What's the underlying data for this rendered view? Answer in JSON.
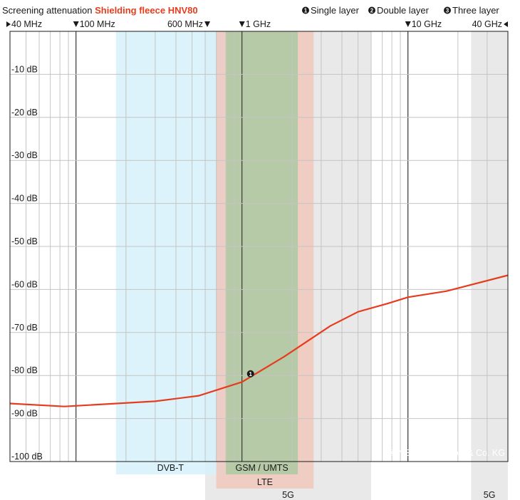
{
  "header": {
    "title": "Screening attenuation",
    "product": "Shielding fleece HNV80",
    "layers": [
      {
        "num": "1",
        "label": "Single layer"
      },
      {
        "num": "2",
        "label": "Double layer"
      },
      {
        "num": "3",
        "label": "Three layer"
      }
    ]
  },
  "copyright": "© YSHIELD GmbH & Co. KG",
  "colors": {
    "curve": "#e63c1e",
    "product_text": "#e63c1e",
    "dvbt_band": "#d6f1fb",
    "gsm_band": "#a9c9a0",
    "lte_band": "#f2c3b6",
    "fiveg_band": "#e7e7e7"
  },
  "chart_data": {
    "type": "line",
    "title": "Screening attenuation Shielding fleece HNV80",
    "x_scale": "log",
    "x_unit": "MHz",
    "xlim": [
      40,
      40000
    ],
    "ylim": [
      -100,
      0
    ],
    "y_ticks": [
      {
        "value": -10,
        "label": "-10 dB"
      },
      {
        "value": -20,
        "label": "-20 dB"
      },
      {
        "value": -30,
        "label": "-30 dB"
      },
      {
        "value": -40,
        "label": "-40 dB"
      },
      {
        "value": -50,
        "label": "-50 dB"
      },
      {
        "value": -60,
        "label": "-60 dB"
      },
      {
        "value": -70,
        "label": "-70 dB"
      },
      {
        "value": -80,
        "label": "-80 dB"
      },
      {
        "value": -90,
        "label": "-90 dB"
      },
      {
        "value": -100,
        "label": "-100 dB"
      }
    ],
    "x_ticks": [
      {
        "value": 40,
        "label": "40 MHz",
        "marker": "right-triangle"
      },
      {
        "value": 100,
        "label": "100 MHz",
        "marker": "down-triangle"
      },
      {
        "value": 600,
        "label": "600 MHz",
        "marker": "down-triangle-after"
      },
      {
        "value": 1000,
        "label": "1 GHz",
        "marker": "down-triangle"
      },
      {
        "value": 10000,
        "label": "10 GHz",
        "marker": "down-triangle"
      },
      {
        "value": 40000,
        "label": "40 GHz",
        "marker": "left-triangle-after"
      }
    ],
    "bands": [
      {
        "label": "DVB-T",
        "from": 174,
        "to": 790
      },
      {
        "label": "GSM / UMTS",
        "from": 800,
        "to": 2170
      },
      {
        "label": "LTE",
        "from": 700,
        "to": 2700
      },
      {
        "label": "5G",
        "from": 600,
        "to": 6000
      },
      {
        "label": "5G",
        "from": 24000,
        "to": 40000
      }
    ],
    "series": [
      {
        "name": "Single layer",
        "marker_label": "1",
        "marker_at": 1000,
        "x": [
          40,
          85,
          300,
          550,
          1000,
          1800,
          3400,
          5000,
          7500,
          10000,
          17000,
          40000
        ],
        "y": [
          -86.5,
          -87.2,
          -86.0,
          -84.7,
          -81.5,
          -75.6,
          -68.5,
          -65.2,
          -63.3,
          -61.8,
          -60.4,
          -56.7
        ]
      }
    ]
  }
}
